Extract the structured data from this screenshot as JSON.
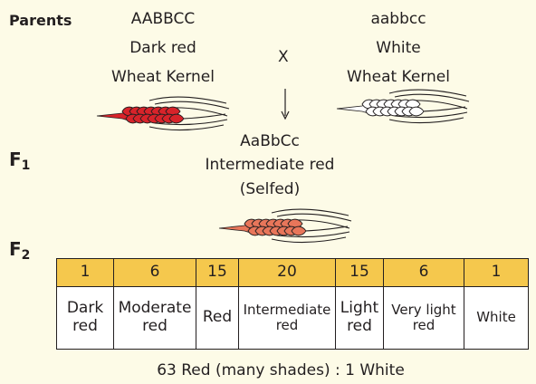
{
  "labels": {
    "parents": "Parents",
    "f1_main": "F",
    "f1_sub": "1",
    "f2_main": "F",
    "f2_sub": "2",
    "cross": "X"
  },
  "parent_dark": {
    "genotype": "AABBCC",
    "phenotype": "Dark red",
    "kind": "Wheat Kernel",
    "color": "#d8232a"
  },
  "parent_white": {
    "genotype": "aabbcc",
    "phenotype": "White",
    "kind": "Wheat Kernel",
    "color": "#ffffff"
  },
  "f1": {
    "genotype": "AaBbCc",
    "phenotype": "Intermediate red",
    "note": "(Selfed)",
    "color": "#e8765a"
  },
  "f2_table": {
    "counts": [
      "1",
      "6",
      "15",
      "20",
      "15",
      "6",
      "1"
    ],
    "classes": [
      {
        "line1": "Dark",
        "line2": "red"
      },
      {
        "line1": "Moderate",
        "line2": "red"
      },
      {
        "line1": "Red",
        "line2": ""
      },
      {
        "line1": "Intermediate",
        "line2": "red"
      },
      {
        "line1": "Light",
        "line2": "red"
      },
      {
        "line1": "Very light",
        "line2": "red"
      },
      {
        "line1": "White",
        "line2": ""
      }
    ]
  },
  "ratio": "63 Red (many shades) : 1 White",
  "colors": {
    "background": "#fdfbe7",
    "table_header": "#f5c84d",
    "outline": "#231f20"
  }
}
